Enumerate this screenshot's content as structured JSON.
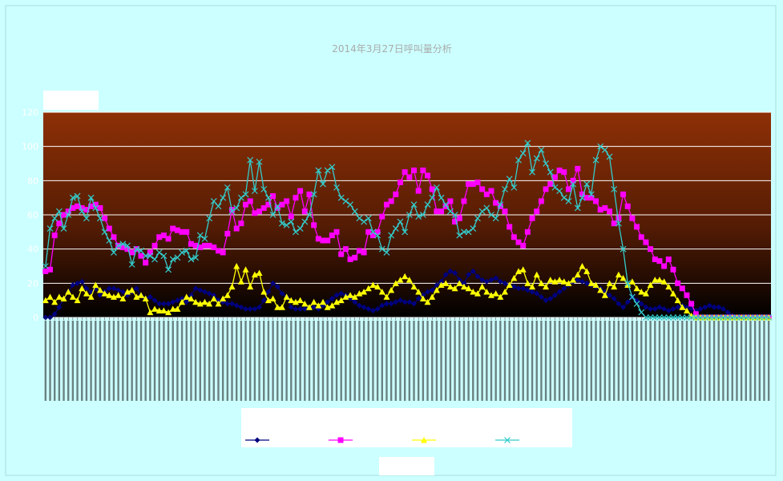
{
  "chart_data": {
    "type": "line",
    "title": "2014年3月27日呼叫量分析",
    "xlabel": "",
    "ylabel": "",
    "ylim": [
      0,
      120
    ],
    "yticks": [
      0,
      20,
      40,
      60,
      80,
      100,
      120
    ],
    "grid": true,
    "legend_position": "bottom",
    "series": [
      {
        "color": "#000080",
        "marker": "diamond",
        "values": [
          0,
          0,
          2,
          6,
          11,
          15,
          19,
          20,
          21,
          17,
          15,
          17,
          13,
          15,
          17,
          17,
          16,
          15,
          13,
          15,
          17,
          13,
          11,
          12,
          10,
          8,
          8,
          8,
          9,
          10,
          11,
          9,
          13,
          17,
          16,
          15,
          14,
          13,
          10,
          9,
          8,
          8,
          7,
          6,
          5,
          5,
          5,
          6,
          10,
          15,
          20,
          18,
          14,
          12,
          6,
          5,
          5,
          5,
          6,
          6,
          5,
          7,
          9,
          11,
          13,
          14,
          13,
          11,
          9,
          7,
          6,
          5,
          4,
          5,
          7,
          8,
          8,
          9,
          10,
          9,
          9,
          8,
          11,
          13,
          15,
          16,
          19,
          21,
          25,
          27,
          26,
          22,
          20,
          25,
          27,
          24,
          22,
          21,
          22,
          23,
          21,
          20,
          19,
          18,
          17,
          17,
          16,
          15,
          14,
          12,
          10,
          11,
          13,
          15,
          17,
          19,
          21,
          22,
          21,
          20,
          19,
          18,
          17,
          15,
          13,
          11,
          8,
          6,
          9,
          12,
          10,
          8,
          6,
          5,
          5,
          6,
          5,
          4,
          5,
          6,
          7,
          6,
          5,
          4,
          5,
          6,
          7,
          6,
          6,
          5,
          3,
          1,
          0,
          0,
          0,
          0,
          0,
          0,
          0,
          0
        ]
      },
      {
        "color": "#ff00ff",
        "marker": "square",
        "values": [
          27,
          28,
          48,
          55,
          60,
          62,
          64,
          65,
          64,
          63,
          65,
          66,
          64,
          58,
          52,
          47,
          42,
          41,
          40,
          38,
          40,
          36,
          32,
          38,
          42,
          47,
          48,
          46,
          52,
          51,
          50,
          50,
          43,
          42,
          41,
          42,
          42,
          41,
          39,
          38,
          49,
          63,
          52,
          55,
          66,
          68,
          61,
          62,
          64,
          66,
          71,
          64,
          66,
          68,
          59,
          70,
          74,
          62,
          72,
          54,
          46,
          45,
          45,
          48,
          50,
          37,
          40,
          34,
          35,
          39,
          38,
          50,
          48,
          50,
          59,
          66,
          68,
          72,
          79,
          85,
          82,
          86,
          74,
          86,
          83,
          75,
          62,
          62,
          65,
          68,
          56,
          58,
          68,
          78,
          78,
          79,
          75,
          72,
          74,
          67,
          65,
          62,
          53,
          47,
          44,
          42,
          50,
          58,
          62,
          68,
          75,
          78,
          82,
          86,
          85,
          75,
          80,
          87,
          72,
          70,
          70,
          68,
          63,
          64,
          62,
          55,
          58,
          72,
          65,
          58,
          53,
          47,
          44,
          40,
          34,
          33,
          30,
          34,
          28,
          20,
          17,
          13,
          8,
          2,
          0,
          0,
          0,
          0,
          0,
          0,
          0,
          0,
          0,
          0,
          0,
          0,
          0,
          0,
          0,
          0
        ]
      },
      {
        "color": "#ffff00",
        "marker": "triangle",
        "values": [
          10,
          12,
          9,
          12,
          11,
          15,
          12,
          10,
          17,
          14,
          12,
          19,
          16,
          14,
          13,
          12,
          13,
          11,
          15,
          16,
          12,
          13,
          11,
          3,
          5,
          4,
          4,
          3,
          5,
          5,
          9,
          12,
          11,
          9,
          8,
          9,
          8,
          11,
          8,
          11,
          13,
          18,
          30,
          21,
          28,
          18,
          25,
          26,
          15,
          10,
          11,
          6,
          6,
          12,
          10,
          9,
          10,
          8,
          6,
          9,
          7,
          9,
          6,
          7,
          9,
          10,
          12,
          13,
          12,
          14,
          15,
          17,
          19,
          18,
          15,
          12,
          16,
          20,
          22,
          24,
          22,
          18,
          15,
          11,
          9,
          12,
          16,
          19,
          20,
          18,
          17,
          20,
          18,
          17,
          15,
          14,
          18,
          15,
          13,
          14,
          12,
          15,
          19,
          23,
          27,
          28,
          20,
          18,
          25,
          20,
          18,
          22,
          21,
          22,
          21,
          20,
          22,
          25,
          30,
          27,
          20,
          19,
          16,
          13,
          20,
          18,
          25,
          23,
          19,
          21,
          17,
          15,
          14,
          19,
          22,
          22,
          21,
          18,
          14,
          10,
          6,
          4,
          1,
          0,
          0,
          0,
          0,
          0,
          0,
          0,
          0,
          0,
          0,
          0,
          0,
          0,
          0,
          0,
          0,
          0
        ]
      },
      {
        "color": "#33cccc",
        "marker": "x",
        "values": [
          30,
          52,
          58,
          62,
          52,
          60,
          70,
          71,
          62,
          58,
          70,
          64,
          58,
          50,
          45,
          38,
          42,
          43,
          42,
          31,
          40,
          39,
          36,
          36,
          34,
          38,
          36,
          28,
          34,
          35,
          38,
          39,
          34,
          35,
          48,
          46,
          58,
          68,
          65,
          70,
          76,
          62,
          64,
          70,
          72,
          92,
          74,
          91,
          75,
          70,
          60,
          65,
          55,
          54,
          56,
          50,
          52,
          56,
          60,
          72,
          86,
          78,
          86,
          88,
          76,
          70,
          68,
          66,
          62,
          58,
          56,
          58,
          50,
          48,
          40,
          38,
          48,
          52,
          56,
          50,
          60,
          66,
          59,
          60,
          66,
          70,
          76,
          70,
          66,
          62,
          60,
          48,
          50,
          50,
          52,
          58,
          62,
          64,
          60,
          58,
          66,
          75,
          81,
          76,
          92,
          96,
          102,
          85,
          93,
          98,
          90,
          85,
          76,
          74,
          70,
          68,
          78,
          64,
          70,
          78,
          72,
          92,
          100,
          98,
          94,
          75,
          55,
          40,
          20,
          12,
          8,
          3,
          0,
          0,
          0,
          0,
          0,
          0,
          0,
          0,
          0,
          0,
          0,
          0,
          0,
          0,
          0,
          0,
          0,
          0,
          0,
          0,
          0,
          0,
          0,
          0,
          0,
          0,
          0,
          0
        ]
      }
    ]
  }
}
